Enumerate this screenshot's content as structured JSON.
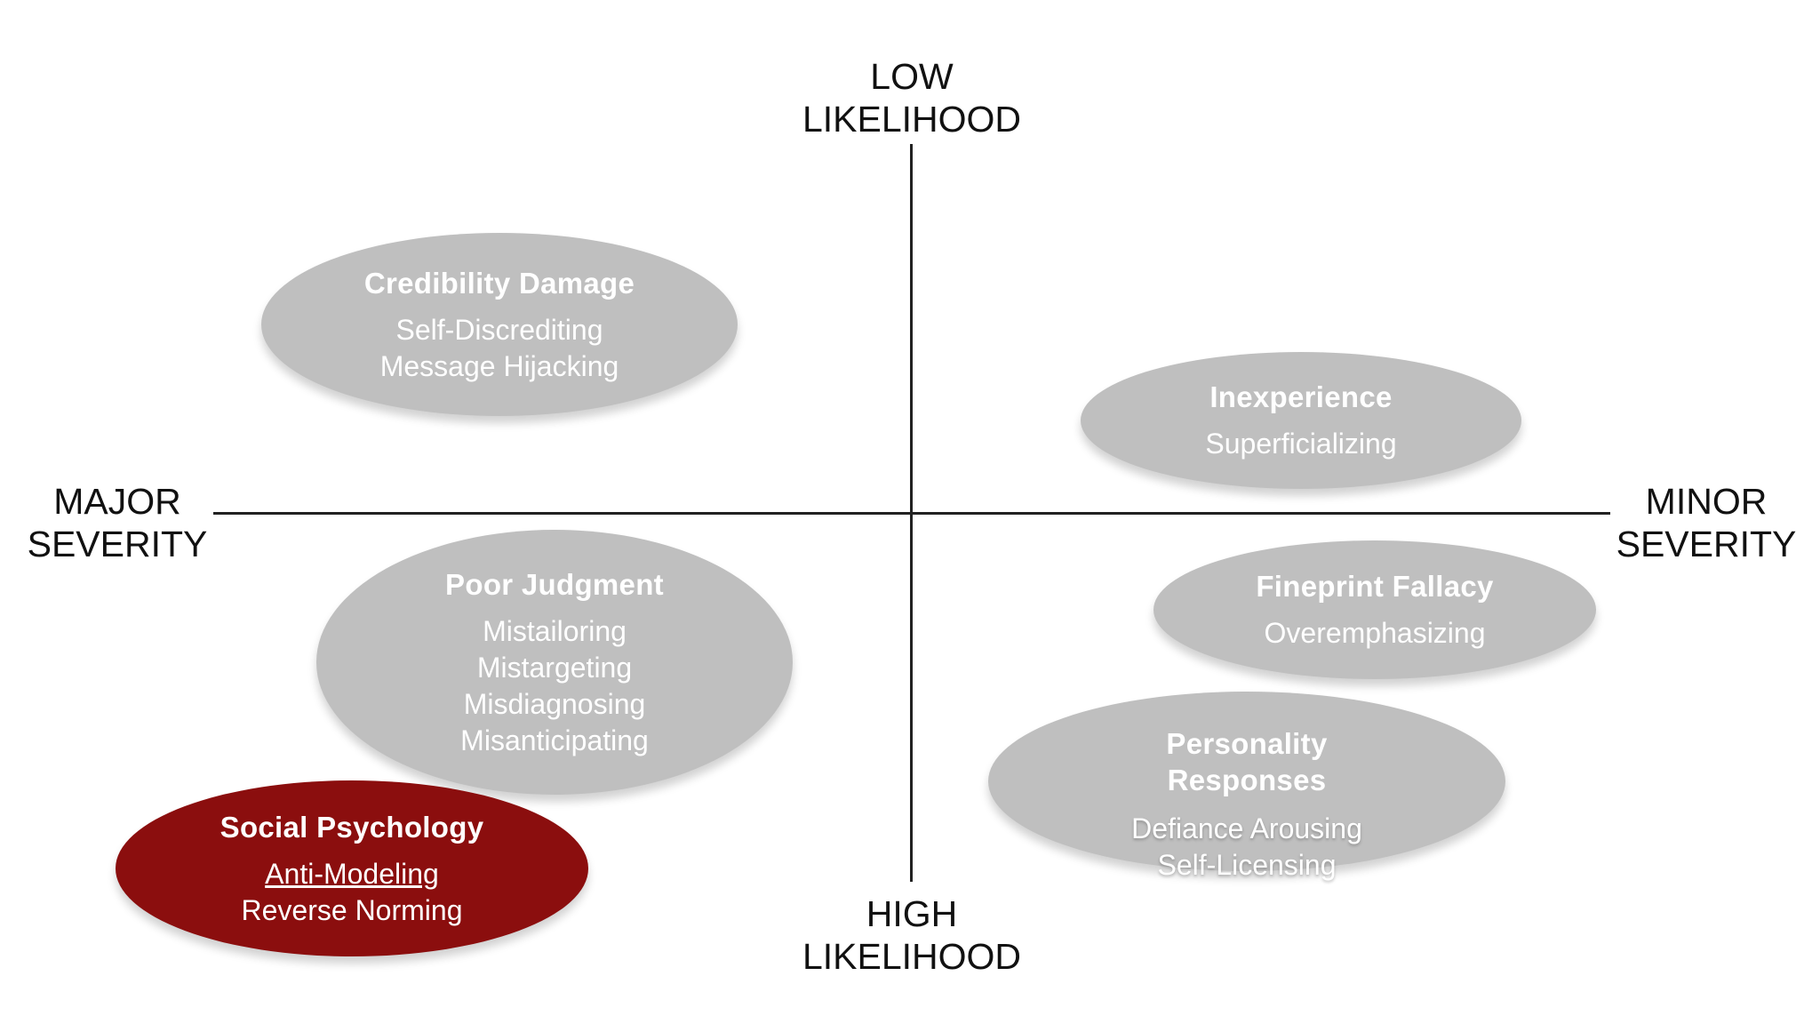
{
  "axes": {
    "top": [
      "LOW",
      "LIKELIHOOD"
    ],
    "bottom": [
      "HIGH",
      "LIKELIHOOD"
    ],
    "left": [
      "MAJOR",
      "SEVERITY"
    ],
    "right": [
      "MINOR",
      "SEVERITY"
    ]
  },
  "colors": {
    "bubble_default": "#bfbfbf",
    "bubble_highlight": "#8b0e0e",
    "axis": "#222222",
    "bubble_text": "#ffffff"
  },
  "bubbles": [
    {
      "id": "credibility",
      "title": "Credibility Damage",
      "items": [
        "Self-Discrediting",
        "Message Hijacking"
      ],
      "highlighted": false
    },
    {
      "id": "inexperience",
      "title": "Inexperience",
      "items": [
        "Superficializing"
      ],
      "highlighted": false
    },
    {
      "id": "poor",
      "title": "Poor Judgment",
      "items": [
        "Mistailoring",
        "Mistargeting",
        "Misdiagnosing",
        "Misanticipating"
      ],
      "highlighted": false
    },
    {
      "id": "fineprint",
      "title": "Fineprint Fallacy",
      "items": [
        "Overemphasizing"
      ],
      "highlighted": false
    },
    {
      "id": "personality",
      "title": "Personality Responses",
      "title_lines": [
        "Personality",
        "Responses"
      ],
      "items": [
        "Defiance Arousing",
        "Self-Licensing"
      ],
      "highlighted": false
    },
    {
      "id": "social",
      "title": "Social Psychology",
      "items": [
        "Anti-Modeling",
        "Reverse Norming"
      ],
      "underlined_item": "Anti-Modeling",
      "highlighted": true
    }
  ]
}
